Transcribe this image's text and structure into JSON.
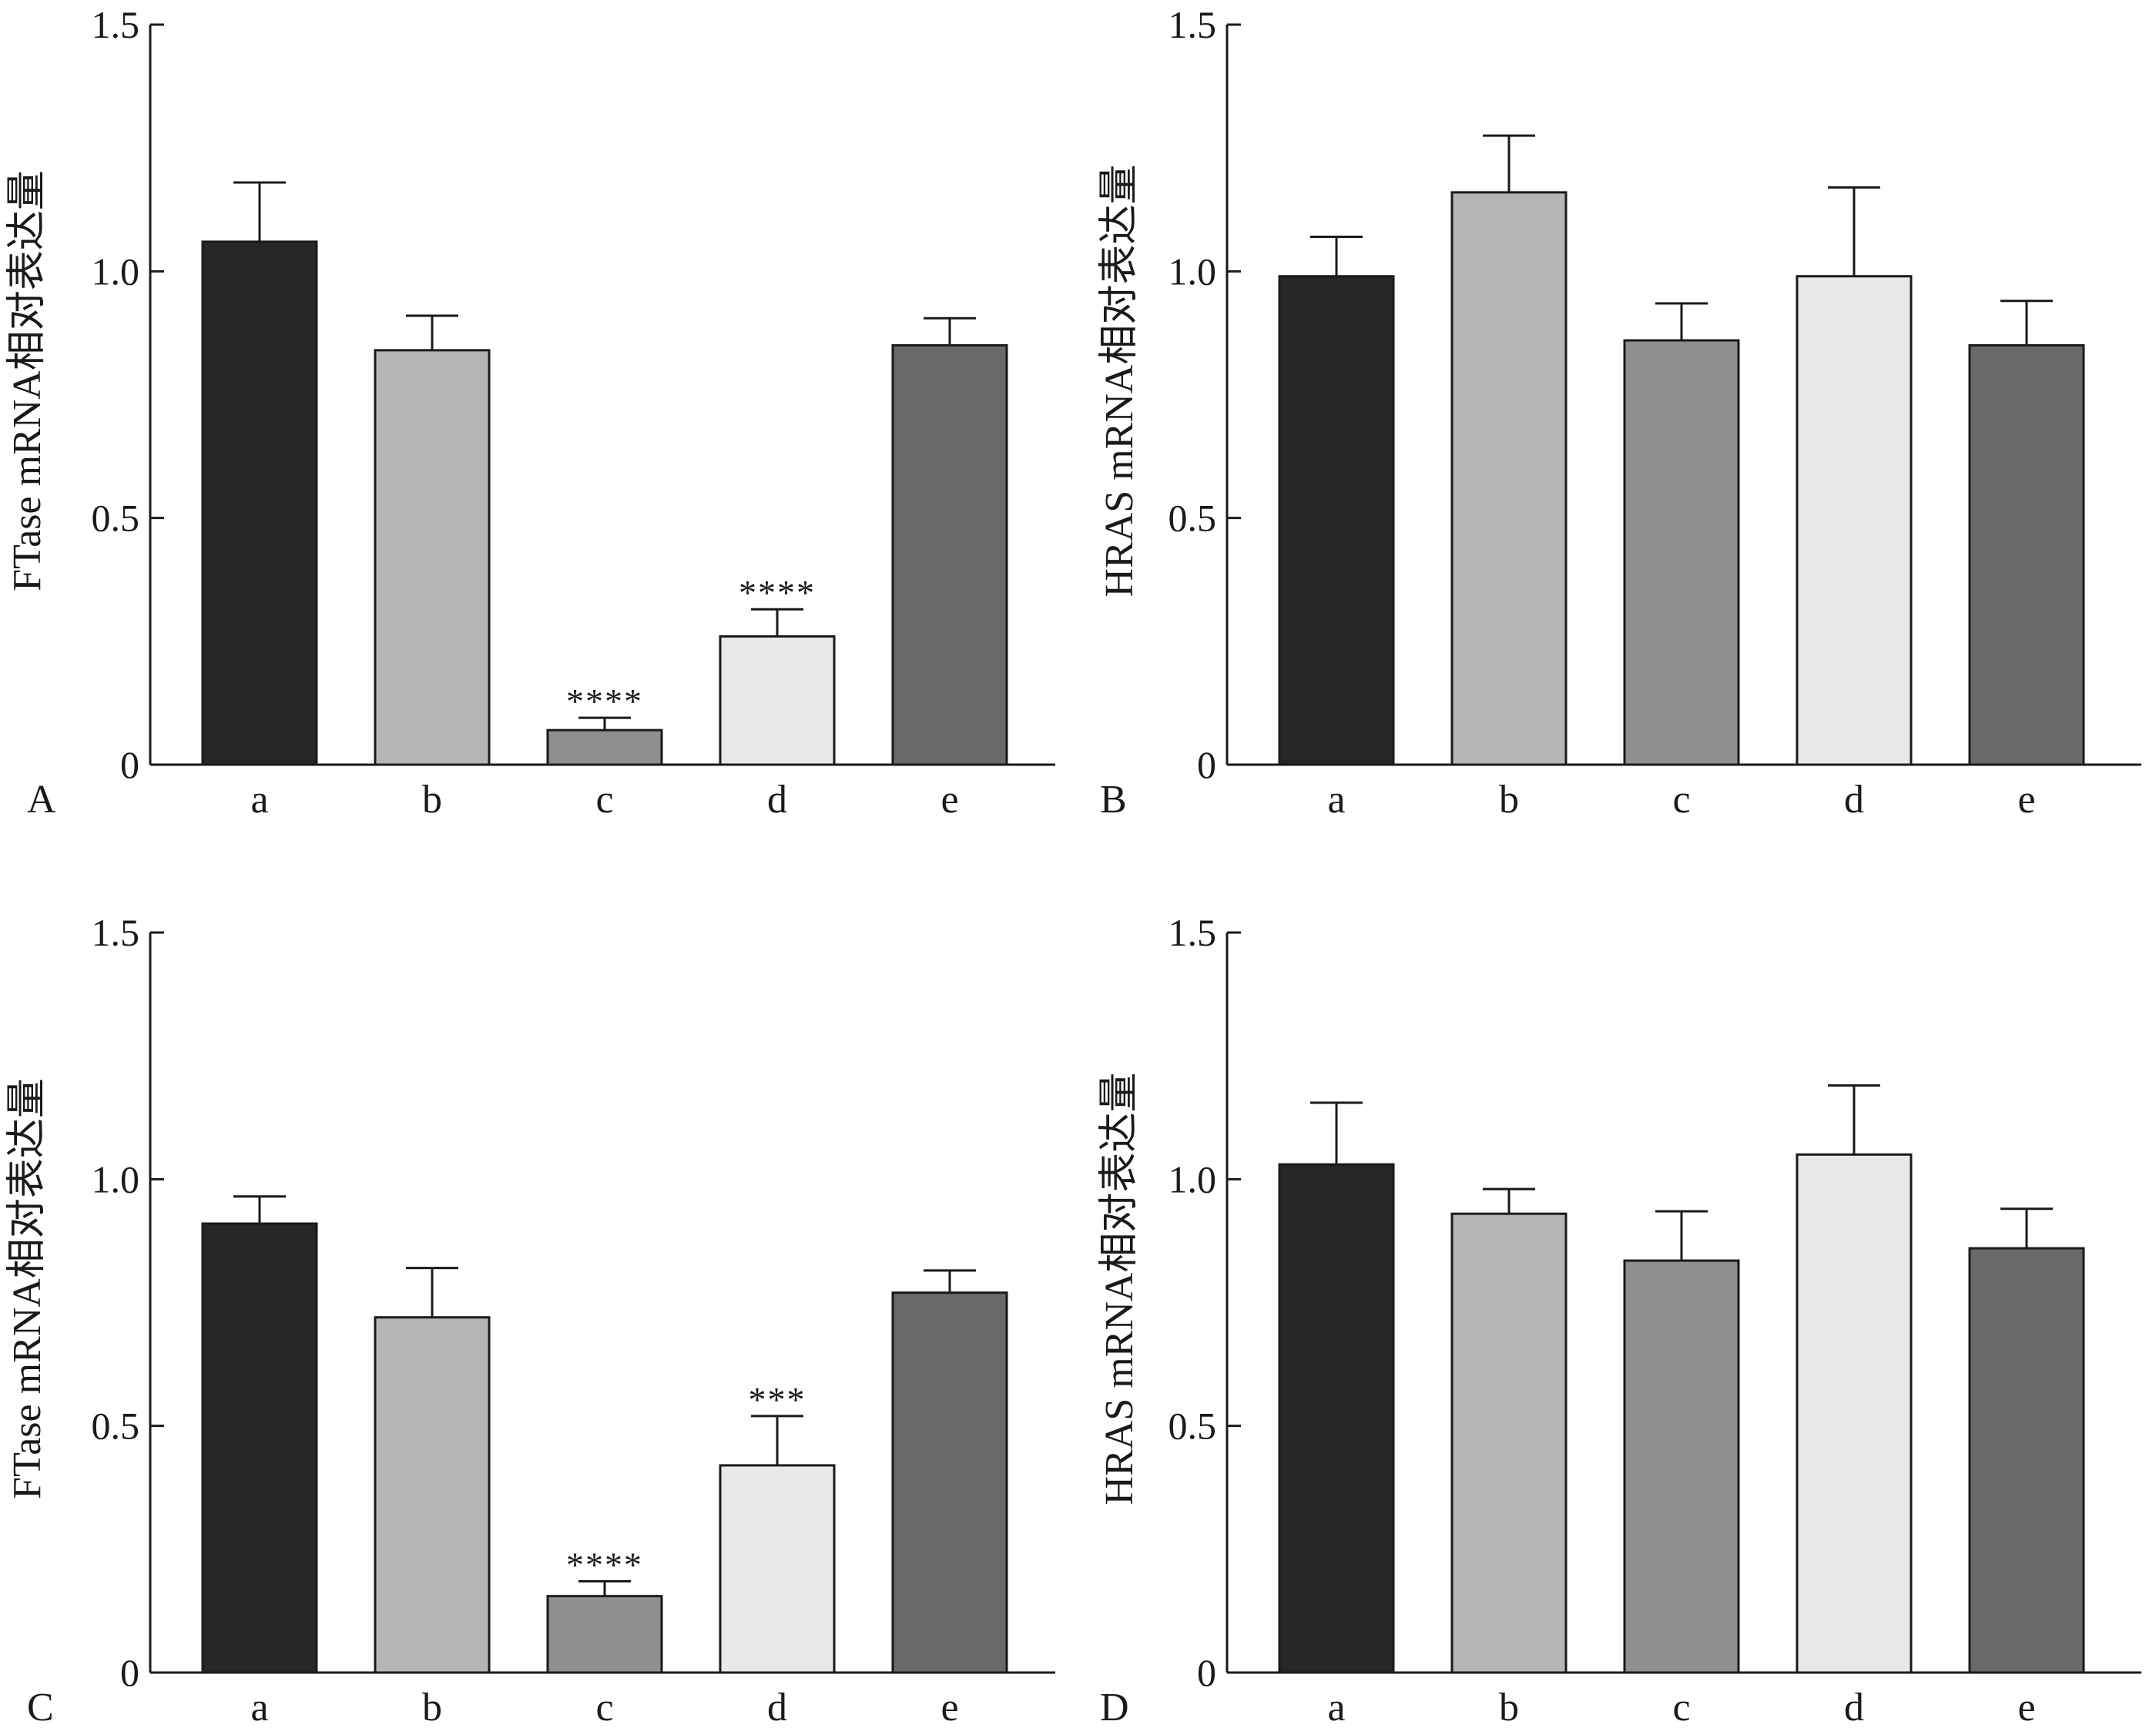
{
  "chart_data": [
    {
      "type": "bar",
      "panel_label": "A",
      "ylabel": "FTase mRNA相对表达量",
      "xlabel": "",
      "categories": [
        "a",
        "b",
        "c",
        "d",
        "e"
      ],
      "values": [
        1.06,
        0.84,
        0.07,
        0.26,
        0.85
      ],
      "errors": [
        0.12,
        0.07,
        0.025,
        0.055,
        0.055
      ],
      "significance": [
        "",
        "",
        "****",
        "****",
        ""
      ],
      "colors": [
        "#262626",
        "#b5b5b5",
        "#8f8f8f",
        "#e8e8e8",
        "#696969"
      ],
      "ylim": [
        0,
        1.5
      ],
      "yticks": [
        "0",
        "0.5",
        "1.0",
        "1.5"
      ],
      "grid": false
    },
    {
      "type": "bar",
      "panel_label": "B",
      "ylabel": "HRAS mRNA相对表达量",
      "xlabel": "",
      "categories": [
        "a",
        "b",
        "c",
        "d",
        "e"
      ],
      "values": [
        0.99,
        1.16,
        0.86,
        0.99,
        0.85
      ],
      "errors": [
        0.08,
        0.115,
        0.075,
        0.18,
        0.09
      ],
      "significance": [
        "",
        "",
        "",
        "",
        ""
      ],
      "colors": [
        "#262626",
        "#b5b5b5",
        "#8f8f8f",
        "#e8e8e8",
        "#696969"
      ],
      "ylim": [
        0,
        1.5
      ],
      "yticks": [
        "0",
        "0.5",
        "1.0",
        "1.5"
      ],
      "grid": false
    },
    {
      "type": "bar",
      "panel_label": "C",
      "ylabel": "FTase mRNA相对表达量",
      "xlabel": "",
      "categories": [
        "a",
        "b",
        "c",
        "d",
        "e"
      ],
      "values": [
        0.91,
        0.72,
        0.155,
        0.42,
        0.77
      ],
      "errors": [
        0.055,
        0.1,
        0.03,
        0.1,
        0.045
      ],
      "significance": [
        "",
        "",
        "****",
        "***",
        ""
      ],
      "colors": [
        "#262626",
        "#b5b5b5",
        "#8f8f8f",
        "#e8e8e8",
        "#696969"
      ],
      "ylim": [
        0,
        1.5
      ],
      "yticks": [
        "0",
        "0.5",
        "1.0",
        "1.5"
      ],
      "grid": false
    },
    {
      "type": "bar",
      "panel_label": "D",
      "ylabel": "HRAS mRNA相对表达量",
      "xlabel": "",
      "categories": [
        "a",
        "b",
        "c",
        "d",
        "e"
      ],
      "values": [
        1.03,
        0.93,
        0.835,
        1.05,
        0.86
      ],
      "errors": [
        0.125,
        0.05,
        0.1,
        0.14,
        0.08
      ],
      "significance": [
        "",
        "",
        "",
        "",
        ""
      ],
      "colors": [
        "#262626",
        "#b5b5b5",
        "#8f8f8f",
        "#e8e8e8",
        "#696969"
      ],
      "ylim": [
        0,
        1.5
      ],
      "yticks": [
        "0",
        "0.5",
        "1.0",
        "1.5"
      ],
      "grid": false
    }
  ]
}
